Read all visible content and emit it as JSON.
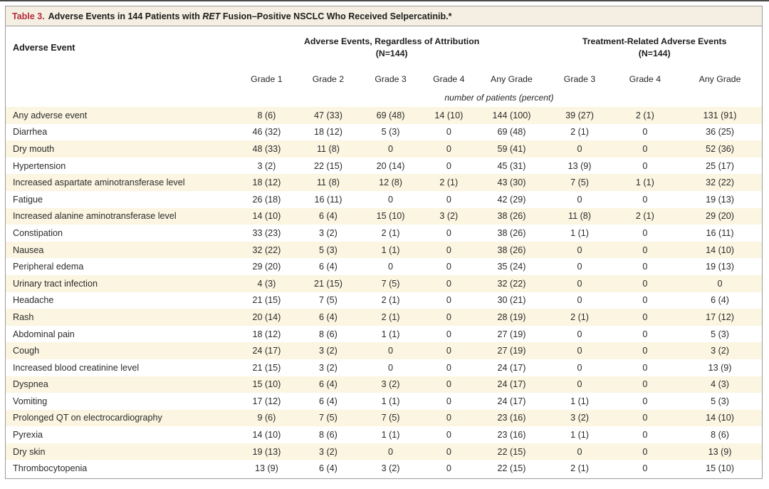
{
  "colors": {
    "accent_red": "#b42c3c",
    "title_band_bg": "#f4efe2",
    "row_stripe": "#fbf5e1",
    "border_gray": "#9b9b9b"
  },
  "table": {
    "title_label": "Table 3.",
    "title_prefix": "Adverse Events in 144 Patients with ",
    "title_italic": "RET",
    "title_suffix": " Fusion–Positive NSCLC Who Received Selpercatinib.*",
    "row_header": "Adverse Event",
    "group1_line1": "Adverse Events, Regardless of Attribution",
    "group1_line2": "(N=144)",
    "group2_line1": "Treatment-Related Adverse Events",
    "group2_line2": "(N=144)",
    "subheaders": [
      "Grade 1",
      "Grade 2",
      "Grade 3",
      "Grade 4",
      "Any Grade",
      "Grade 3",
      "Grade 4",
      "Any Grade"
    ],
    "units_note": "number of patients (percent)",
    "rows": [
      {
        "label": "Any adverse event",
        "values": [
          "8 (6)",
          "47 (33)",
          "69 (48)",
          "14 (10)",
          "144 (100)",
          "39 (27)",
          "2 (1)",
          "131 (91)"
        ]
      },
      {
        "label": "Diarrhea",
        "values": [
          "46 (32)",
          "18 (12)",
          "5 (3)",
          "0",
          "69 (48)",
          "2 (1)",
          "0",
          "36 (25)"
        ]
      },
      {
        "label": "Dry mouth",
        "values": [
          "48 (33)",
          "11 (8)",
          "0",
          "0",
          "59 (41)",
          "0",
          "0",
          "52 (36)"
        ]
      },
      {
        "label": "Hypertension",
        "values": [
          "3 (2)",
          "22 (15)",
          "20 (14)",
          "0",
          "45 (31)",
          "13 (9)",
          "0",
          "25 (17)"
        ]
      },
      {
        "label": "Increased aspartate aminotransferase level",
        "values": [
          "18 (12)",
          "11 (8)",
          "12 (8)",
          "2 (1)",
          "43 (30)",
          "7 (5)",
          "1 (1)",
          "32 (22)"
        ]
      },
      {
        "label": "Fatigue",
        "values": [
          "26 (18)",
          "16 (11)",
          "0",
          "0",
          "42 (29)",
          "0",
          "0",
          "19 (13)"
        ]
      },
      {
        "label": "Increased alanine aminotransferase level",
        "values": [
          "14 (10)",
          "6 (4)",
          "15 (10)",
          "3 (2)",
          "38 (26)",
          "11 (8)",
          "2 (1)",
          "29 (20)"
        ]
      },
      {
        "label": "Constipation",
        "values": [
          "33 (23)",
          "3 (2)",
          "2 (1)",
          "0",
          "38 (26)",
          "1 (1)",
          "0",
          "16 (11)"
        ]
      },
      {
        "label": "Nausea",
        "values": [
          "32 (22)",
          "5 (3)",
          "1 (1)",
          "0",
          "38 (26)",
          "0",
          "0",
          "14 (10)"
        ]
      },
      {
        "label": "Peripheral edema",
        "values": [
          "29 (20)",
          "6 (4)",
          "0",
          "0",
          "35 (24)",
          "0",
          "0",
          "19 (13)"
        ]
      },
      {
        "label": "Urinary tract infection",
        "values": [
          "4 (3)",
          "21 (15)",
          "7 (5)",
          "0",
          "32 (22)",
          "0",
          "0",
          "0"
        ]
      },
      {
        "label": "Headache",
        "values": [
          "21 (15)",
          "7 (5)",
          "2 (1)",
          "0",
          "30 (21)",
          "0",
          "0",
          "6 (4)"
        ]
      },
      {
        "label": "Rash",
        "values": [
          "20 (14)",
          "6 (4)",
          "2 (1)",
          "0",
          "28 (19)",
          "2 (1)",
          "0",
          "17 (12)"
        ]
      },
      {
        "label": "Abdominal pain",
        "values": [
          "18 (12)",
          "8 (6)",
          "1 (1)",
          "0",
          "27 (19)",
          "0",
          "0",
          "5 (3)"
        ]
      },
      {
        "label": "Cough",
        "values": [
          "24 (17)",
          "3 (2)",
          "0",
          "0",
          "27 (19)",
          "0",
          "0",
          "3 (2)"
        ]
      },
      {
        "label": "Increased blood creatinine level",
        "values": [
          "21 (15)",
          "3 (2)",
          "0",
          "0",
          "24 (17)",
          "0",
          "0",
          "13 (9)"
        ]
      },
      {
        "label": "Dyspnea",
        "values": [
          "15 (10)",
          "6 (4)",
          "3 (2)",
          "0",
          "24 (17)",
          "0",
          "0",
          "4 (3)"
        ]
      },
      {
        "label": "Vomiting",
        "values": [
          "17 (12)",
          "6 (4)",
          "1 (1)",
          "0",
          "24 (17)",
          "1 (1)",
          "0",
          "5 (3)"
        ]
      },
      {
        "label": "Prolonged QT on electrocardiography",
        "values": [
          "9 (6)",
          "7 (5)",
          "7 (5)",
          "0",
          "23 (16)",
          "3 (2)",
          "0",
          "14 (10)"
        ]
      },
      {
        "label": "Pyrexia",
        "values": [
          "14 (10)",
          "8 (6)",
          "1 (1)",
          "0",
          "23 (16)",
          "1 (1)",
          "0",
          "8 (6)"
        ]
      },
      {
        "label": "Dry skin",
        "values": [
          "19 (13)",
          "3 (2)",
          "0",
          "0",
          "22 (15)",
          "0",
          "0",
          "13 (9)"
        ]
      },
      {
        "label": "Thrombocytopenia",
        "values": [
          "13 (9)",
          "6 (4)",
          "3 (2)",
          "0",
          "22 (15)",
          "2 (1)",
          "0",
          "15 (10)"
        ]
      }
    ]
  }
}
